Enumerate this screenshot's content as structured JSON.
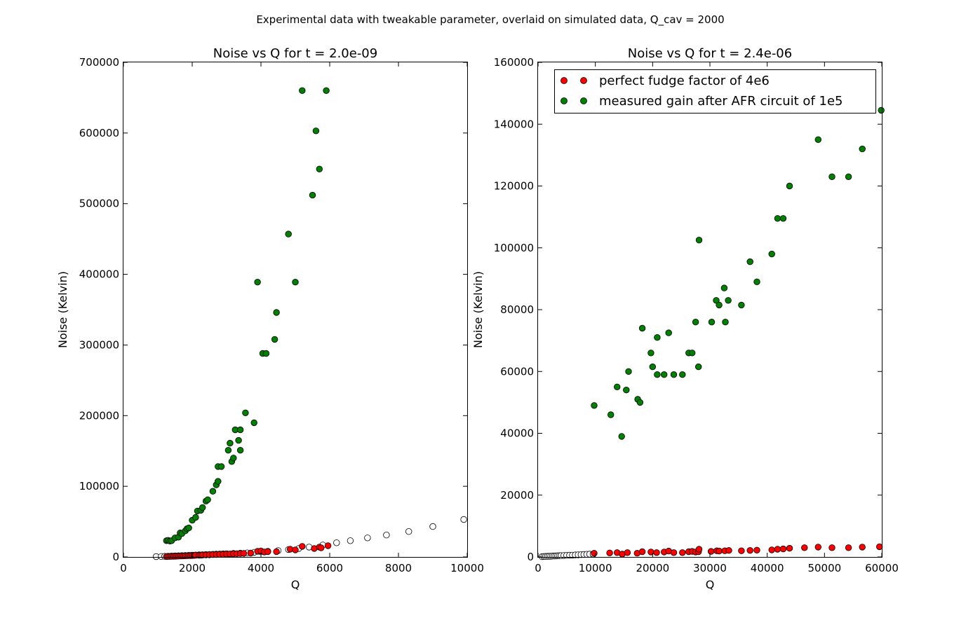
{
  "figure_title": "Experimental data with tweakable parameter, overlaid on simulated data, Q_cav = 2000",
  "colors": {
    "red": "#ff0000",
    "green": "#008000",
    "white": "#ffffff",
    "edge": "#000000"
  },
  "chart_data": [
    {
      "type": "scatter",
      "title": "Noise vs Q for t = 2.0e-09",
      "xlabel": "Q",
      "ylabel": "Noise (Kelvin)",
      "xlim": [
        0,
        10000
      ],
      "ylim": [
        0,
        700000
      ],
      "xticks": [
        0,
        2000,
        4000,
        6000,
        8000,
        10000
      ],
      "yticks": [
        0,
        100000,
        200000,
        300000,
        400000,
        500000,
        600000,
        700000
      ],
      "xtick_labels": [
        "0",
        "2000",
        "4000",
        "6000",
        "8000",
        "10000"
      ],
      "ytick_labels": [
        "0",
        "100000",
        "200000",
        "300000",
        "400000",
        "500000",
        "600000",
        "700000"
      ],
      "grid": false,
      "legend": null,
      "series": [
        {
          "color": "white",
          "points": [
            [
              950,
              500
            ],
            [
              1100,
              700
            ],
            [
              1200,
              900
            ],
            [
              1300,
              1100
            ],
            [
              1400,
              1300
            ],
            [
              1500,
              1500
            ],
            [
              1600,
              1700
            ],
            [
              1700,
              1900
            ],
            [
              1800,
              2100
            ],
            [
              1900,
              2300
            ],
            [
              2000,
              2600
            ],
            [
              2100,
              2800
            ],
            [
              2200,
              3000
            ],
            [
              2300,
              3200
            ],
            [
              2400,
              3400
            ],
            [
              2500,
              3600
            ],
            [
              2600,
              3800
            ],
            [
              2700,
              4000
            ],
            [
              2800,
              4200
            ],
            [
              2900,
              4400
            ],
            [
              3000,
              4600
            ],
            [
              3200,
              5000
            ],
            [
              3400,
              5400
            ],
            [
              3600,
              5800
            ],
            [
              3800,
              6500
            ],
            [
              4000,
              7200
            ],
            [
              4200,
              8000
            ],
            [
              4500,
              9000
            ],
            [
              4800,
              10500
            ],
            [
              5100,
              12000
            ],
            [
              5400,
              14000
            ],
            [
              5800,
              17000
            ],
            [
              6200,
              20000
            ],
            [
              6600,
              23000
            ],
            [
              7100,
              27000
            ],
            [
              7650,
              31000
            ],
            [
              8300,
              36000
            ],
            [
              9000,
              43000
            ],
            [
              9900,
              53000
            ]
          ]
        },
        {
          "color": "red",
          "points": [
            [
              1250,
              600
            ],
            [
              1300,
              700
            ],
            [
              1350,
              800
            ],
            [
              1400,
              900
            ],
            [
              1450,
              1000
            ],
            [
              1500,
              1100
            ],
            [
              1550,
              1200
            ],
            [
              1600,
              1300
            ],
            [
              1650,
              1400
            ],
            [
              1700,
              1500
            ],
            [
              1750,
              1600
            ],
            [
              1800,
              1700
            ],
            [
              1850,
              1800
            ],
            [
              1900,
              1900
            ],
            [
              1950,
              2000
            ],
            [
              2000,
              2100
            ],
            [
              2050,
              2200
            ],
            [
              2100,
              2300
            ],
            [
              2200,
              2500
            ],
            [
              2250,
              2600
            ],
            [
              2300,
              2700
            ],
            [
              2400,
              2900
            ],
            [
              2500,
              3100
            ],
            [
              2600,
              3300
            ],
            [
              2700,
              3500
            ],
            [
              2800,
              3700
            ],
            [
              2900,
              3900
            ],
            [
              3000,
              4100
            ],
            [
              3100,
              4300
            ],
            [
              3200,
              4500
            ],
            [
              3300,
              4700
            ],
            [
              3400,
              4900
            ],
            [
              3500,
              5100
            ],
            [
              3700,
              5500
            ],
            [
              3900,
              8000
            ],
            [
              4000,
              8500
            ],
            [
              4100,
              7000
            ],
            [
              4200,
              7500
            ],
            [
              4450,
              7500
            ],
            [
              4850,
              11000
            ],
            [
              5000,
              10000
            ],
            [
              5200,
              15000
            ],
            [
              5550,
              12000
            ],
            [
              5700,
              14000
            ],
            [
              5750,
              13000
            ],
            [
              5950,
              16000
            ]
          ]
        },
        {
          "color": "green",
          "points": [
            [
              1250,
              23000
            ],
            [
              1300,
              23500
            ],
            [
              1350,
              22500
            ],
            [
              1400,
              23000
            ],
            [
              1500,
              27000
            ],
            [
              1600,
              28000
            ],
            [
              1650,
              34000
            ],
            [
              1700,
              33000
            ],
            [
              1800,
              37000
            ],
            [
              1850,
              40000
            ],
            [
              1900,
              41000
            ],
            [
              2000,
              52000
            ],
            [
              2100,
              56000
            ],
            [
              2150,
              65000
            ],
            [
              2250,
              66000
            ],
            [
              2300,
              70000
            ],
            [
              2400,
              79000
            ],
            [
              2450,
              81000
            ],
            [
              2600,
              93000
            ],
            [
              2700,
              102000
            ],
            [
              2750,
              107000
            ],
            [
              2750,
              128000
            ],
            [
              2850,
              128000
            ],
            [
              3050,
              151000
            ],
            [
              3100,
              161000
            ],
            [
              3150,
              135000
            ],
            [
              3200,
              140000
            ],
            [
              3250,
              180000
            ],
            [
              3350,
              165000
            ],
            [
              3400,
              151000
            ],
            [
              3400,
              180000
            ],
            [
              3550,
              204000
            ],
            [
              3800,
              190000
            ],
            [
              3900,
              389000
            ],
            [
              4050,
              288000
            ],
            [
              4150,
              288000
            ],
            [
              4400,
              308000
            ],
            [
              4450,
              346000
            ],
            [
              4800,
              457000
            ],
            [
              5000,
              389000
            ],
            [
              5200,
              660000
            ],
            [
              5500,
              512000
            ],
            [
              5600,
              603000
            ],
            [
              5700,
              549000
            ],
            [
              5900,
              660000
            ]
          ]
        }
      ]
    },
    {
      "type": "scatter",
      "title": "Noise vs Q for t = 2.4e-06",
      "xlabel": "Q",
      "ylabel": "Noise (Kelvin)",
      "xlim": [
        0,
        60000
      ],
      "ylim": [
        0,
        160000
      ],
      "xticks": [
        0,
        10000,
        20000,
        30000,
        40000,
        50000,
        60000
      ],
      "yticks": [
        0,
        20000,
        40000,
        60000,
        80000,
        100000,
        120000,
        140000,
        160000
      ],
      "xtick_labels": [
        "0",
        "10000",
        "20000",
        "30000",
        "40000",
        "50000",
        "60000"
      ],
      "ytick_labels": [
        "0",
        "20000",
        "40000",
        "60000",
        "80000",
        "100000",
        "120000",
        "140000",
        "160000"
      ],
      "grid": false,
      "legend": "top-right",
      "series": [
        {
          "color": "white",
          "points": [
            [
              700,
              100
            ],
            [
              1000,
              150
            ],
            [
              1300,
              180
            ],
            [
              1600,
              200
            ],
            [
              1900,
              230
            ],
            [
              2200,
              260
            ],
            [
              2500,
              290
            ],
            [
              2800,
              320
            ],
            [
              3100,
              350
            ],
            [
              3400,
              380
            ],
            [
              3700,
              410
            ],
            [
              4000,
              440
            ],
            [
              4500,
              480
            ],
            [
              5000,
              520
            ],
            [
              5500,
              560
            ],
            [
              6000,
              600
            ],
            [
              6500,
              650
            ],
            [
              7000,
              700
            ],
            [
              7500,
              750
            ],
            [
              8000,
              800
            ],
            [
              8500,
              850
            ],
            [
              9000,
              900
            ],
            [
              9600,
              950
            ]
          ]
        },
        {
          "name": "perfect fudge factor of 4e6",
          "color": "red",
          "points": [
            [
              9800,
              1200
            ],
            [
              12500,
              1300
            ],
            [
              13800,
              1400
            ],
            [
              14700,
              900
            ],
            [
              15600,
              1400
            ],
            [
              17300,
              1200
            ],
            [
              18200,
              1700
            ],
            [
              19700,
              1600
            ],
            [
              20700,
              1400
            ],
            [
              22000,
              1600
            ],
            [
              22800,
              1900
            ],
            [
              23700,
              1400
            ],
            [
              25200,
              1400
            ],
            [
              26300,
              1700
            ],
            [
              26900,
              1800
            ],
            [
              27500,
              1600
            ],
            [
              28000,
              1700
            ],
            [
              28100,
              2500
            ],
            [
              30200,
              1800
            ],
            [
              31200,
              2000
            ],
            [
              31600,
              1900
            ],
            [
              32600,
              2000
            ],
            [
              33300,
              2100
            ],
            [
              35500,
              2000
            ],
            [
              37000,
              2100
            ],
            [
              38200,
              2200
            ],
            [
              40800,
              2300
            ],
            [
              41800,
              2500
            ],
            [
              42800,
              2600
            ],
            [
              43900,
              2800
            ],
            [
              46500,
              3000
            ],
            [
              48900,
              3200
            ],
            [
              51300,
              3000
            ],
            [
              54200,
              3000
            ],
            [
              56600,
              3200
            ],
            [
              59600,
              3300
            ]
          ]
        },
        {
          "name": "measured gain after AFR circuit of 1e5",
          "color": "green",
          "points": [
            [
              9800,
              49000
            ],
            [
              12700,
              46000
            ],
            [
              13800,
              55000
            ],
            [
              14600,
              39000
            ],
            [
              15400,
              54000
            ],
            [
              15800,
              60000
            ],
            [
              17400,
              51000
            ],
            [
              17800,
              50000
            ],
            [
              18200,
              74000
            ],
            [
              19700,
              66000
            ],
            [
              20000,
              61500
            ],
            [
              20800,
              71000
            ],
            [
              20800,
              59000
            ],
            [
              22000,
              59000
            ],
            [
              22800,
              72500
            ],
            [
              23700,
              59000
            ],
            [
              25200,
              59000
            ],
            [
              26300,
              66000
            ],
            [
              26900,
              66000
            ],
            [
              27500,
              76000
            ],
            [
              28000,
              61500
            ],
            [
              28100,
              102500
            ],
            [
              30300,
              76000
            ],
            [
              31100,
              83000
            ],
            [
              31600,
              81500
            ],
            [
              32500,
              87000
            ],
            [
              32700,
              76000
            ],
            [
              33200,
              83000
            ],
            [
              35500,
              81500
            ],
            [
              37000,
              95500
            ],
            [
              38200,
              89000
            ],
            [
              40800,
              98000
            ],
            [
              41800,
              109500
            ],
            [
              42800,
              109500
            ],
            [
              43900,
              120000
            ],
            [
              48900,
              135000
            ],
            [
              51300,
              123000
            ],
            [
              54200,
              123000
            ],
            [
              56600,
              132000
            ],
            [
              59900,
              144500
            ]
          ]
        }
      ]
    }
  ]
}
